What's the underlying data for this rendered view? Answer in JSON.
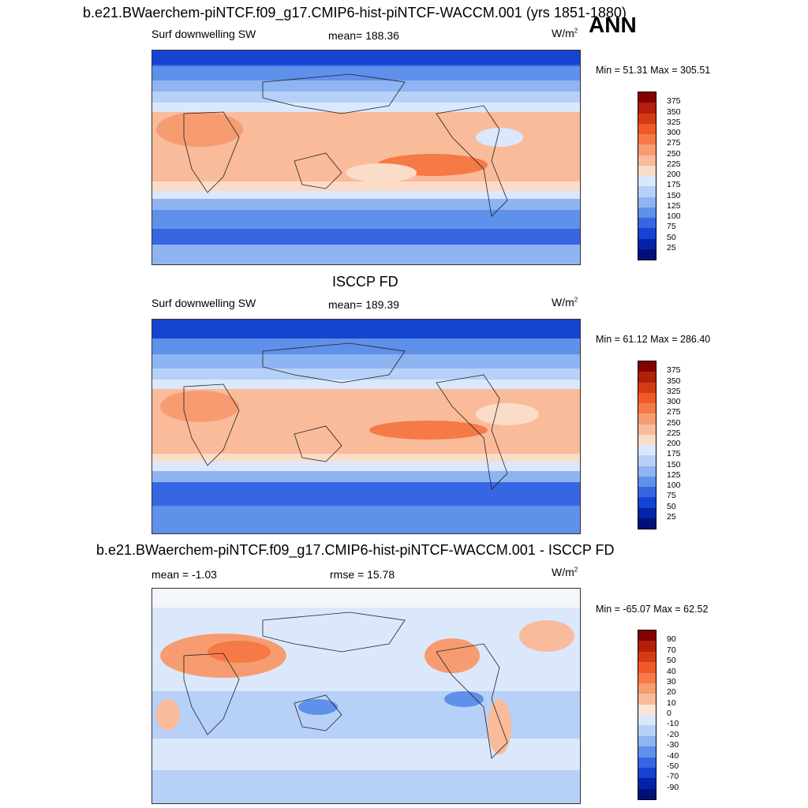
{
  "figure": {
    "main_title": "b.e21.BWaerchem-piNTCF.f09_g17.CMIP6-hist-piNTCF-WACCM.001 (yrs 1851-1880)",
    "season": "ANN"
  },
  "panels": [
    {
      "title": "",
      "variable": "Surf downwelling SW",
      "stat1": "mean= 188.36",
      "stat2": "",
      "units_base": "W/m",
      "units_exp": "2",
      "minmax": "Min =  51.31 Max = 305.51",
      "colorbar_labels": [
        "375",
        "350",
        "325",
        "300",
        "275",
        "250",
        "225",
        "200",
        "175",
        "150",
        "125",
        "100",
        "75",
        "50",
        "25"
      ]
    },
    {
      "title": "ISCCP FD",
      "variable": "Surf downwelling SW",
      "stat1": "mean= 189.39",
      "stat2": "",
      "units_base": "W/m",
      "units_exp": "2",
      "minmax": "Min =  61.12 Max = 286.40",
      "colorbar_labels": [
        "375",
        "350",
        "325",
        "300",
        "275",
        "250",
        "225",
        "200",
        "175",
        "150",
        "125",
        "100",
        "75",
        "50",
        "25"
      ]
    },
    {
      "title": "b.e21.BWaerchem-piNTCF.f09_g17.CMIP6-hist-piNTCF-WACCM.001 - ISCCP FD",
      "variable": "",
      "stat1": "mean =  -1.03",
      "stat2": "rmse =  15.78",
      "units_base": "W/m",
      "units_exp": "2",
      "minmax": "Min = -65.07 Max =  62.52",
      "colorbar_labels": [
        "90",
        "70",
        "50",
        "40",
        "30",
        "20",
        "10",
        "0",
        "-10",
        "-20",
        "-30",
        "-40",
        "-50",
        "-70",
        "-90"
      ]
    }
  ],
  "colors": {
    "scale": [
      "#850000",
      "#b2200a",
      "#d63a14",
      "#f05a28",
      "#f57a46",
      "#f79c70",
      "#f9bb9a",
      "#fbdcc8",
      "#dbe8fb",
      "#b7d0f7",
      "#8fb4f2",
      "#5f90ea",
      "#3766e2",
      "#1544d2",
      "#0224a8",
      "#00107a"
    ]
  }
}
